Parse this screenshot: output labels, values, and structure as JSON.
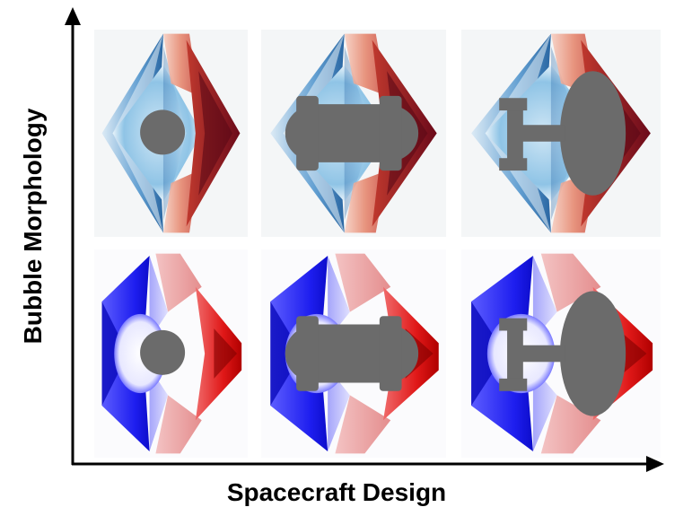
{
  "xlabel": "Spacecraft Design",
  "ylabel": "Bubble Morphology",
  "colors": {
    "axis": "#000000",
    "craft": "#6b6b6b",
    "top_blue": "#2e74b5",
    "top_light_blue": "#a9d3ee",
    "top_red": "#e06c55",
    "top_dark_red": "#7d0b1c",
    "bottom_blue": "#1b1bef",
    "bottom_red": "#e21a1a"
  },
  "rows": [
    {
      "morphology": "diffuse-blue-red",
      "panels": [
        {
          "design": "circle"
        },
        {
          "design": "capsule"
        },
        {
          "design": "enterprise"
        }
      ]
    },
    {
      "morphology": "saturated-blue-red",
      "panels": [
        {
          "design": "circle"
        },
        {
          "design": "capsule"
        },
        {
          "design": "enterprise"
        }
      ]
    }
  ]
}
